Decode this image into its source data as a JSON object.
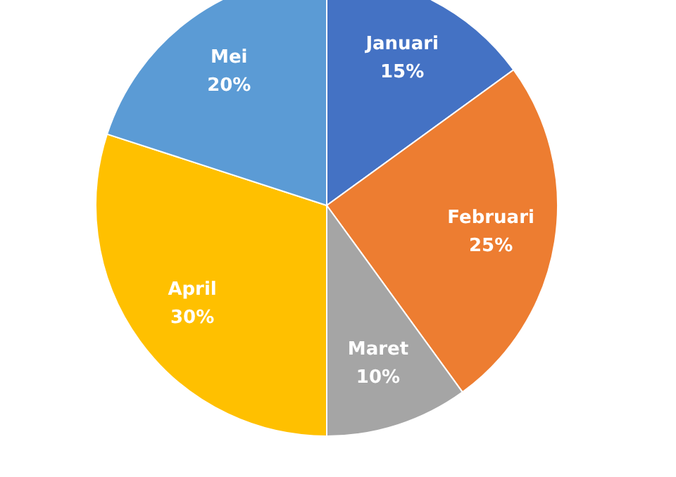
{
  "chart_data": {
    "type": "pie",
    "categories": [
      "Januari",
      "Februari",
      "Maret",
      "April",
      "Mei"
    ],
    "values": [
      15,
      25,
      10,
      30,
      20
    ],
    "value_labels": [
      "15%",
      "25%",
      "10%",
      "30%",
      "20%"
    ],
    "colors": [
      "#4472c4",
      "#ed7d31",
      "#a5a5a5",
      "#ffc000",
      "#5b9bd5"
    ]
  }
}
